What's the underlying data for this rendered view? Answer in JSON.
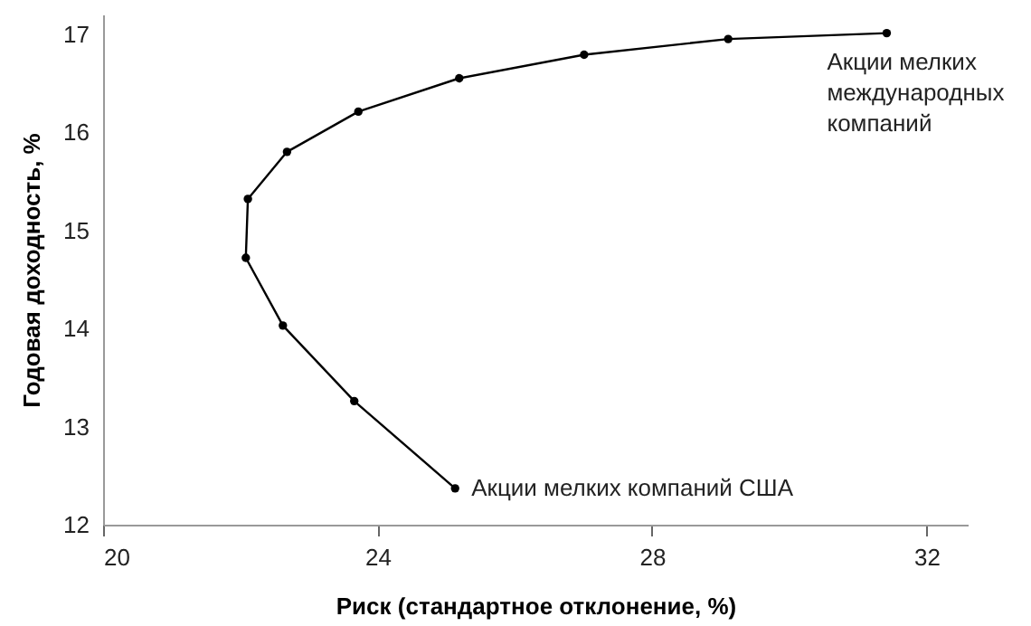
{
  "chart_data": {
    "type": "line",
    "xlabel": "Риск (стандартное отклонение, %)",
    "ylabel": "Годовая доходность, %",
    "x": [
      25.13,
      23.66,
      22.62,
      22.08,
      22.11,
      22.68,
      23.72,
      25.19,
      27.01,
      29.11,
      31.42
    ],
    "series": [
      {
        "color": "#000000",
        "values": [
          12.37,
          13.26,
          14.03,
          14.72,
          15.32,
          15.8,
          16.21,
          16.55,
          16.79,
          16.95,
          17.01
        ]
      }
    ],
    "xlim": [
      20,
      32.6
    ],
    "xticks": [
      20,
      24,
      28,
      32
    ],
    "ylim": [
      12,
      17.2
    ],
    "yticks": [
      12,
      13,
      14,
      15,
      16,
      17
    ],
    "marker": "circle",
    "line_style": "solid",
    "grid": false,
    "annotations": [
      {
        "text": "Акции мелких компаний США",
        "x": 25.13,
        "y": 12.37
      },
      {
        "text": "Акции мелких\nмеждународных\nкомпаний",
        "x": 31.42,
        "y": 17.01
      }
    ]
  }
}
